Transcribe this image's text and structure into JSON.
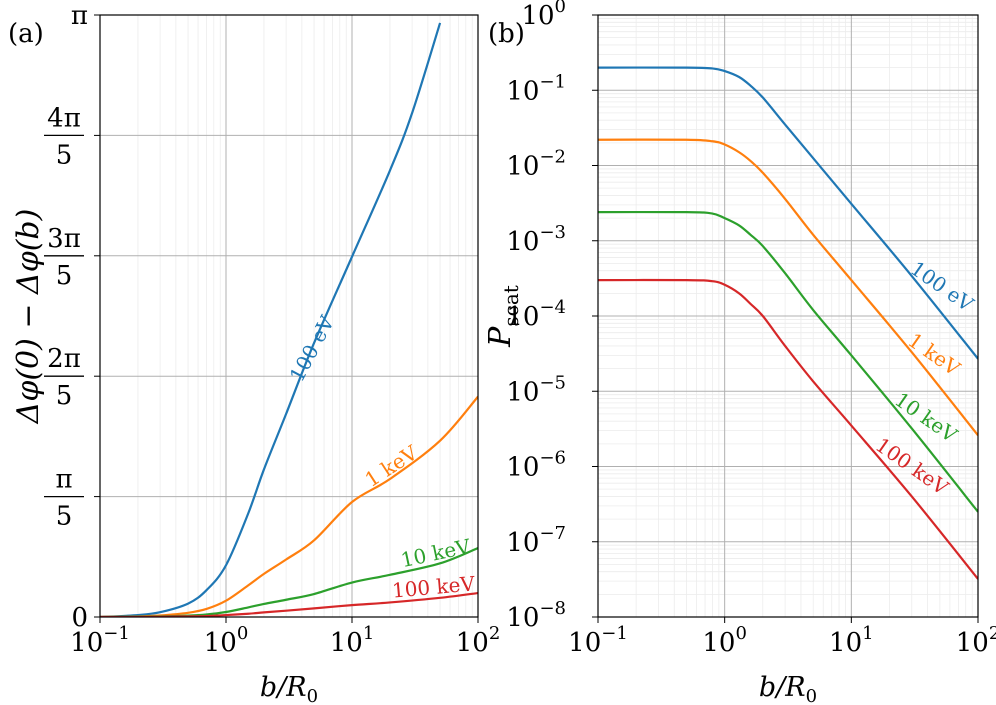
{
  "chart_data": [
    {
      "type": "line",
      "panel_label": "(a)",
      "xlabel": "b/R_0",
      "ylabel": "Δφ(0) − Δφ(b)",
      "xscale": "log",
      "xlim": [
        0.1,
        100
      ],
      "ylim": [
        0,
        3.14159
      ],
      "grid": true,
      "x_ticks": [
        {
          "value": 0.1,
          "base": "10",
          "exp": "−1"
        },
        {
          "value": 1,
          "base": "10",
          "exp": "0"
        },
        {
          "value": 10,
          "base": "10",
          "exp": "1"
        },
        {
          "value": 100,
          "base": "10",
          "exp": "2"
        }
      ],
      "y_ticks": [
        {
          "value": 0,
          "label": "0"
        },
        {
          "value": 0.62832,
          "num": "π",
          "den": "5"
        },
        {
          "value": 1.25664,
          "num": "2π",
          "den": "5"
        },
        {
          "value": 1.88496,
          "num": "3π",
          "den": "5"
        },
        {
          "value": 2.51327,
          "num": "4π",
          "den": "5"
        },
        {
          "value": 3.14159,
          "label": "π"
        }
      ],
      "series": [
        {
          "name": "100 eV",
          "color": "#1f77b4",
          "x": [
            0.1,
            0.2,
            0.3,
            0.5,
            0.7,
            1,
            1.5,
            2,
            3,
            5,
            10,
            20,
            30,
            50
          ],
          "y": [
            0.0,
            0.01,
            0.025,
            0.07,
            0.14,
            0.27,
            0.54,
            0.77,
            1.06,
            1.43,
            1.88,
            2.33,
            2.63,
            3.1
          ]
        },
        {
          "name": "1 keV",
          "color": "#ff7f0e",
          "x": [
            0.1,
            0.2,
            0.3,
            0.5,
            0.7,
            1,
            1.5,
            2,
            3,
            5,
            10,
            20,
            50,
            100
          ],
          "y": [
            0.0,
            0.003,
            0.008,
            0.022,
            0.042,
            0.085,
            0.165,
            0.225,
            0.3,
            0.4,
            0.6,
            0.72,
            0.92,
            1.15
          ]
        },
        {
          "name": "10 keV",
          "color": "#2ca02c",
          "x": [
            0.1,
            0.3,
            0.5,
            0.7,
            1,
            1.5,
            2,
            3,
            5,
            10,
            20,
            50,
            100
          ],
          "y": [
            0.0,
            0.003,
            0.007,
            0.013,
            0.026,
            0.05,
            0.068,
            0.09,
            0.12,
            0.18,
            0.22,
            0.28,
            0.36
          ]
        },
        {
          "name": "100 keV",
          "color": "#d62728",
          "x": [
            0.1,
            0.3,
            0.5,
            0.7,
            1,
            1.5,
            2,
            3,
            5,
            10,
            20,
            50,
            100
          ],
          "y": [
            0.0,
            0.001,
            0.003,
            0.005,
            0.01,
            0.017,
            0.024,
            0.033,
            0.045,
            0.062,
            0.076,
            0.1,
            0.125
          ]
        }
      ]
    },
    {
      "type": "line",
      "panel_label": "(b)",
      "xlabel": "b/R_0",
      "ylabel": "P_scat",
      "xscale": "log",
      "yscale": "log",
      "xlim": [
        0.1,
        100
      ],
      "ylim": [
        1e-08,
        1
      ],
      "grid": true,
      "x_ticks": [
        {
          "value": 0.1,
          "base": "10",
          "exp": "−1"
        },
        {
          "value": 1,
          "base": "10",
          "exp": "0"
        },
        {
          "value": 10,
          "base": "10",
          "exp": "1"
        },
        {
          "value": 100,
          "base": "10",
          "exp": "2"
        }
      ],
      "y_ticks": [
        {
          "value": 1,
          "base": "10",
          "exp": "0"
        },
        {
          "value": 0.1,
          "base": "10",
          "exp": "−1"
        },
        {
          "value": 0.01,
          "base": "10",
          "exp": "−2"
        },
        {
          "value": 0.001,
          "base": "10",
          "exp": "−3"
        },
        {
          "value": 0.0001,
          "base": "10",
          "exp": "−4"
        },
        {
          "value": 1e-05,
          "base": "10",
          "exp": "−5"
        },
        {
          "value": 1e-06,
          "base": "10",
          "exp": "−6"
        },
        {
          "value": 1e-07,
          "base": "10",
          "exp": "−7"
        },
        {
          "value": 1e-08,
          "base": "10",
          "exp": "−8"
        }
      ],
      "series": [
        {
          "name": "100 eV",
          "color": "#1f77b4",
          "x": [
            0.1,
            0.5,
            0.8,
            1,
            1.3,
            1.6,
            2,
            3,
            5,
            10,
            30,
            100
          ],
          "y": [
            0.2,
            0.2,
            0.195,
            0.18,
            0.15,
            0.115,
            0.08,
            0.035,
            0.0125,
            0.0031,
            0.00034,
            2.7e-05
          ]
        },
        {
          "name": "1 keV",
          "color": "#ff7f0e",
          "x": [
            0.1,
            0.5,
            0.8,
            1,
            1.3,
            1.6,
            2,
            3,
            5,
            10,
            30,
            100
          ],
          "y": [
            0.022,
            0.022,
            0.021,
            0.019,
            0.015,
            0.0115,
            0.008,
            0.0036,
            0.0012,
            0.0003,
            3.3e-05,
            2.6e-06
          ]
        },
        {
          "name": "10 keV",
          "color": "#2ca02c",
          "x": [
            0.1,
            0.5,
            0.8,
            1,
            1.3,
            1.6,
            2,
            3,
            5,
            10,
            30,
            100
          ],
          "y": [
            0.0024,
            0.0024,
            0.0023,
            0.002,
            0.0016,
            0.0012,
            0.00085,
            0.00037,
            0.00012,
            3e-05,
            3.2e-06,
            2.5e-07
          ]
        },
        {
          "name": "100 keV",
          "color": "#d62728",
          "x": [
            0.1,
            0.5,
            0.8,
            1,
            1.3,
            1.6,
            2,
            3,
            5,
            10,
            30,
            100
          ],
          "y": [
            0.0003,
            0.0003,
            0.00029,
            0.00026,
            0.0002,
            0.000145,
            0.0001,
            4e-05,
            1.35e-05,
            3.5e-06,
            4e-07,
            3.2e-08
          ]
        }
      ]
    }
  ]
}
